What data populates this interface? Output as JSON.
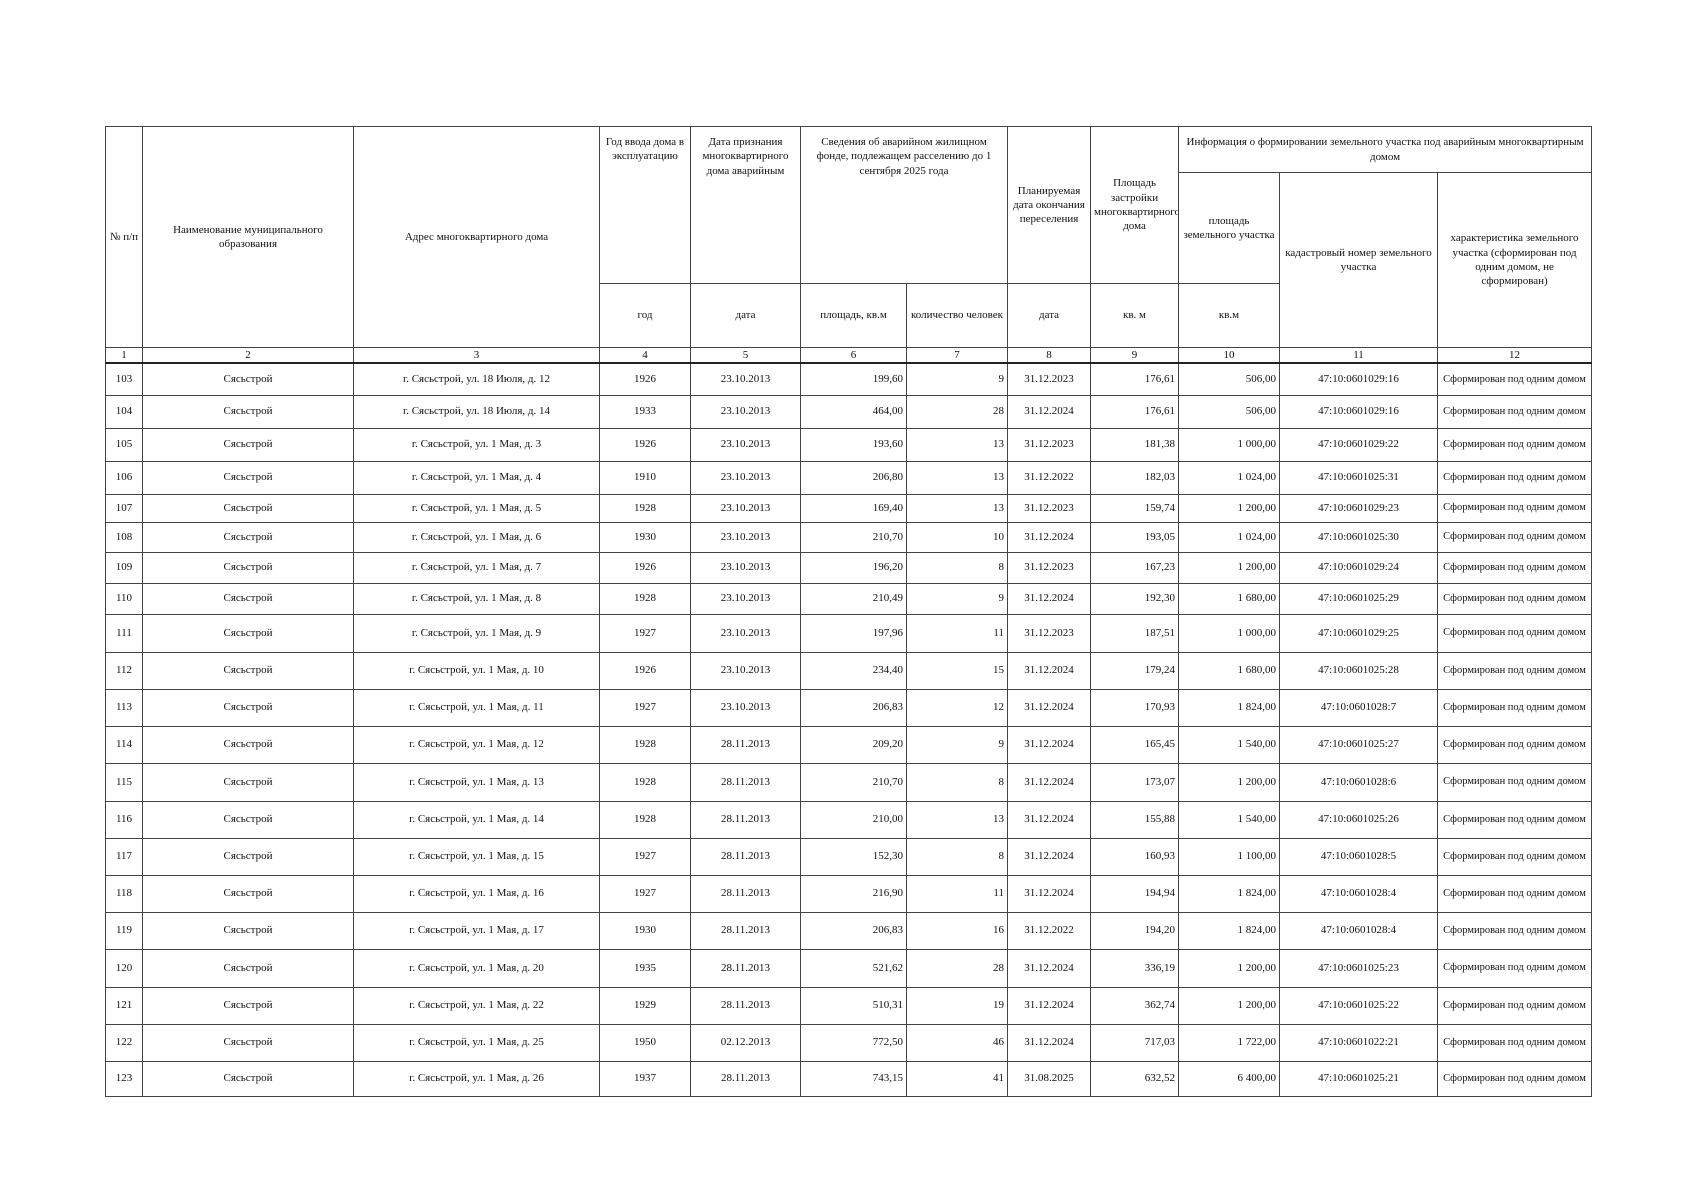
{
  "headers": {
    "c1": "№ п/п",
    "c2": "Наименование муниципального образования",
    "c3": "Адрес многоквартирного дома",
    "c4": "Год ввода дома в эксплуатацию",
    "c5": "Дата признания многоквартирного дома аварийным",
    "c67": "Сведения об аварийном жилищном фонде, подлежащем расселению до 1 сентября 2025 года",
    "c8": "Планируемая дата окончания переселения",
    "c9": "Площадь застройки многоквартирного дома",
    "group": "Информация о формировании земельного участка под аварийным многоквартирным домом",
    "c10": "площадь земельного участка",
    "c11": "кадастровый номер земельного участка",
    "c12": "характеристика земельного участка (сформирован под одним домом, не сформирован)",
    "u4": "год",
    "u5": "дата",
    "u6": "площадь, кв.м",
    "u7": "количество человек",
    "u8": "дата",
    "u9": "кв. м",
    "u10": "кв.м"
  },
  "column_numbers": [
    "1",
    "2",
    "3",
    "4",
    "5",
    "6",
    "7",
    "8",
    "9",
    "10",
    "11",
    "12"
  ],
  "rows": [
    [
      "103",
      "Сясьстрой",
      "г. Сясьстрой, ул. 18 Июля, д. 12",
      "1926",
      "23.10.2013",
      "199,60",
      "9",
      "31.12.2023",
      "176,61",
      "506,00",
      "47:10:0601029:16",
      "Сформирован под одним домом"
    ],
    [
      "104",
      "Сясьстрой",
      "г. Сясьстрой, ул. 18 Июля, д. 14",
      "1933",
      "23.10.2013",
      "464,00",
      "28",
      "31.12.2024",
      "176,61",
      "506,00",
      "47:10:0601029:16",
      "Сформирован под одним домом"
    ],
    [
      "105",
      "Сясьстрой",
      "г. Сясьстрой, ул. 1 Мая, д. 3",
      "1926",
      "23.10.2013",
      "193,60",
      "13",
      "31.12.2023",
      "181,38",
      "1 000,00",
      "47:10:0601029:22",
      "Сформирован под одним домом"
    ],
    [
      "106",
      "Сясьстрой",
      "г. Сясьстрой, ул. 1 Мая, д. 4",
      "1910",
      "23.10.2013",
      "206,80",
      "13",
      "31.12.2022",
      "182,03",
      "1 024,00",
      "47:10:0601025:31",
      "Сформирован под одним домом"
    ],
    [
      "107",
      "Сясьстрой",
      "г. Сясьстрой, ул. 1 Мая, д. 5",
      "1928",
      "23.10.2013",
      "169,40",
      "13",
      "31.12.2023",
      "159,74",
      "1 200,00",
      "47:10:0601029:23",
      "Сформирован под одним домом"
    ],
    [
      "108",
      "Сясьстрой",
      "г. Сясьстрой, ул. 1 Мая, д. 6",
      "1930",
      "23.10.2013",
      "210,70",
      "10",
      "31.12.2024",
      "193,05",
      "1 024,00",
      "47:10:0601025:30",
      "Сформирован под одним домом"
    ],
    [
      "109",
      "Сясьстрой",
      "г. Сясьстрой, ул. 1 Мая, д. 7",
      "1926",
      "23.10.2013",
      "196,20",
      "8",
      "31.12.2023",
      "167,23",
      "1 200,00",
      "47:10:0601029:24",
      "Сформирован под одним домом"
    ],
    [
      "110",
      "Сясьстрой",
      "г. Сясьстрой, ул. 1 Мая, д. 8",
      "1928",
      "23.10.2013",
      "210,49",
      "9",
      "31.12.2024",
      "192,30",
      "1 680,00",
      "47:10:0601025:29",
      "Сформирован под одним домом"
    ],
    [
      "111",
      "Сясьстрой",
      "г. Сясьстрой, ул. 1 Мая, д. 9",
      "1927",
      "23.10.2013",
      "197,96",
      "11",
      "31.12.2023",
      "187,51",
      "1 000,00",
      "47:10:0601029:25",
      "Сформирован под одним домом"
    ],
    [
      "112",
      "Сясьстрой",
      "г. Сясьстрой, ул. 1 Мая, д. 10",
      "1926",
      "23.10.2013",
      "234,40",
      "15",
      "31.12.2024",
      "179,24",
      "1 680,00",
      "47:10:0601025:28",
      "Сформирован под одним домом"
    ],
    [
      "113",
      "Сясьстрой",
      "г. Сясьстрой, ул. 1 Мая, д. 11",
      "1927",
      "23.10.2013",
      "206,83",
      "12",
      "31.12.2024",
      "170,93",
      "1 824,00",
      "47:10:0601028:7",
      "Сформирован под одним домом"
    ],
    [
      "114",
      "Сясьстрой",
      "г. Сясьстрой, ул. 1 Мая, д. 12",
      "1928",
      "28.11.2013",
      "209,20",
      "9",
      "31.12.2024",
      "165,45",
      "1 540,00",
      "47:10:0601025:27",
      "Сформирован под одним домом"
    ],
    [
      "115",
      "Сясьстрой",
      "г. Сясьстрой, ул. 1 Мая, д. 13",
      "1928",
      "28.11.2013",
      "210,70",
      "8",
      "31.12.2024",
      "173,07",
      "1 200,00",
      "47:10:0601028:6",
      "Сформирован под одним домом"
    ],
    [
      "116",
      "Сясьстрой",
      "г. Сясьстрой, ул. 1 Мая, д. 14",
      "1928",
      "28.11.2013",
      "210,00",
      "13",
      "31.12.2024",
      "155,88",
      "1 540,00",
      "47:10:0601025:26",
      "Сформирован под одним домом"
    ],
    [
      "117",
      "Сясьстрой",
      "г. Сясьстрой, ул. 1 Мая, д. 15",
      "1927",
      "28.11.2013",
      "152,30",
      "8",
      "31.12.2024",
      "160,93",
      "1 100,00",
      "47:10:0601028:5",
      "Сформирован под одним домом"
    ],
    [
      "118",
      "Сясьстрой",
      "г. Сясьстрой, ул. 1 Мая, д. 16",
      "1927",
      "28.11.2013",
      "216,90",
      "11",
      "31.12.2024",
      "194,94",
      "1 824,00",
      "47:10:0601028:4",
      "Сформирован под одним домом"
    ],
    [
      "119",
      "Сясьстрой",
      "г. Сясьстрой, ул. 1 Мая, д. 17",
      "1930",
      "28.11.2013",
      "206,83",
      "16",
      "31.12.2022",
      "194,20",
      "1 824,00",
      "47:10:0601028:4",
      "Сформирован под одним домом"
    ],
    [
      "120",
      "Сясьстрой",
      "г. Сясьстрой, ул. 1 Мая, д. 20",
      "1935",
      "28.11.2013",
      "521,62",
      "28",
      "31.12.2024",
      "336,19",
      "1 200,00",
      "47:10:0601025:23",
      "Сформирован под одним домом"
    ],
    [
      "121",
      "Сясьстрой",
      "г. Сясьстрой, ул. 1 Мая, д. 22",
      "1929",
      "28.11.2013",
      "510,31",
      "19",
      "31.12.2024",
      "362,74",
      "1 200,00",
      "47:10:0601025:22",
      "Сформирован под одним домом"
    ],
    [
      "122",
      "Сясьстрой",
      "г. Сясьстрой, ул. 1 Мая, д. 25",
      "1950",
      "02.12.2013",
      "772,50",
      "46",
      "31.12.2024",
      "717,03",
      "1 722,00",
      "47:10:0601022:21",
      "Сформирован под одним домом"
    ],
    [
      "123",
      "Сясьстрой",
      "г. Сясьстрой, ул. 1 Мая, д. 26",
      "1937",
      "28.11.2013",
      "743,15",
      "41",
      "31.08.2025",
      "632,52",
      "6 400,00",
      "47:10:0601025:21",
      "Сформирован под одним домом"
    ]
  ]
}
